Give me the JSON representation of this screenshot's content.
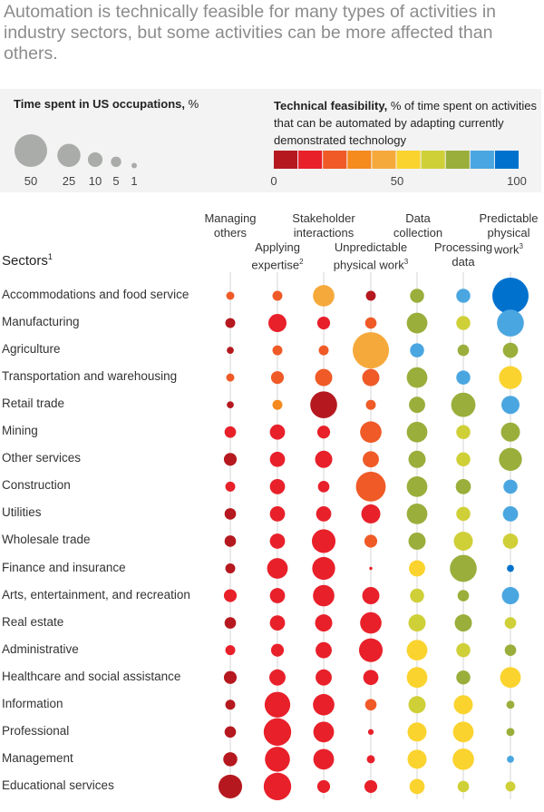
{
  "title": "Automation is technically feasible for many types of activities in industry sectors, but some activities can be more affected than others.",
  "legend": {
    "size_title_bold": "Time spent in US occupations,",
    "size_title_unit": "%",
    "size_values": [
      "50",
      "25",
      "10",
      "5",
      "1"
    ],
    "color_title_bold": "Technical feasibility,",
    "color_title_rest": "% of time spent on activities that can be automated by adapting currently demonstrated technology",
    "scale_labels": [
      "0",
      "50",
      "100"
    ],
    "colors": [
      "#b5191f",
      "#e8202a",
      "#ef5a27",
      "#f58a1f",
      "#f6a93b",
      "#fad32e",
      "#cfcf38",
      "#9aae3b",
      "#4aa6e0",
      "#0072ce"
    ]
  },
  "sectors_header": "Sectors",
  "sectors_header_sup": "1",
  "columns": [
    {
      "line1": "Managing",
      "line2": "others",
      "line3": ""
    },
    {
      "line1": "Applying",
      "line2": "expertise",
      "sup": "2"
    },
    {
      "line1": "Stakeholder",
      "line2": "interactions"
    },
    {
      "line1": "Unpredictable",
      "line2": "physical work",
      "sup": "3"
    },
    {
      "line1": "Data",
      "line2": "collection"
    },
    {
      "line1": "Processing",
      "line2": "data"
    },
    {
      "line1": "Predictable",
      "line2": "physical",
      "line3": "work",
      "sup": "3"
    }
  ],
  "chart_data": {
    "type": "bubble-matrix",
    "title": "Automation is technically feasible for many types of activities in industry sectors, but some activities can be more affected than others.",
    "size_measure": "Time spent in US occupations, %",
    "color_measure": "Technical feasibility, % of time spent on activities that can be automated by adapting currently demonstrated technology",
    "color_scale": [
      0,
      100
    ],
    "columns": [
      "Managing others",
      "Applying expertise",
      "Stakeholder interactions",
      "Unpredictable physical work",
      "Data collection",
      "Processing data",
      "Predictable physical work"
    ],
    "rows": [
      {
        "sector": "Accommodations and food service",
        "size": [
          2,
          3,
          14,
          3,
          6,
          6,
          40
        ],
        "feasibility": [
          25,
          25,
          45,
          2,
          78,
          86,
          98
        ]
      },
      {
        "sector": "Manufacturing",
        "size": [
          3,
          10,
          5,
          4,
          13,
          6,
          22
        ],
        "feasibility": [
          2,
          12,
          12,
          28,
          78,
          65,
          86
        ]
      },
      {
        "sector": "Agriculture",
        "size": [
          1.5,
          3,
          3,
          40,
          6,
          4,
          7
        ],
        "feasibility": [
          2,
          25,
          25,
          45,
          86,
          78,
          78
        ]
      },
      {
        "sector": "Transportation and warehousing",
        "size": [
          2,
          5,
          9,
          9,
          13,
          6,
          16
        ],
        "feasibility": [
          25,
          25,
          28,
          28,
          78,
          86,
          55
        ]
      },
      {
        "sector": "Retail trade",
        "size": [
          1.5,
          3,
          22,
          3,
          8,
          18,
          10
        ],
        "feasibility": [
          2,
          35,
          2,
          25,
          78,
          78,
          86
        ]
      },
      {
        "sector": "Mining",
        "size": [
          4,
          7,
          5,
          14,
          13,
          6,
          11
        ],
        "feasibility": [
          12,
          18,
          18,
          28,
          78,
          65,
          78
        ]
      },
      {
        "sector": "Other services",
        "size": [
          5,
          7,
          9,
          8,
          9,
          6,
          16
        ],
        "feasibility": [
          2,
          18,
          12,
          28,
          78,
          65,
          78
        ]
      },
      {
        "sector": "Construction",
        "size": [
          3,
          7,
          4,
          27,
          13,
          7,
          6
        ],
        "feasibility": [
          12,
          12,
          18,
          28,
          78,
          78,
          86
        ]
      },
      {
        "sector": "Utilities",
        "size": [
          4,
          7,
          7,
          11,
          13,
          6,
          7
        ],
        "feasibility": [
          2,
          12,
          12,
          18,
          78,
          65,
          86
        ]
      },
      {
        "sector": "Wholesale trade",
        "size": [
          4,
          7,
          17,
          5,
          9,
          11,
          7
        ],
        "feasibility": [
          2,
          18,
          12,
          28,
          78,
          65,
          65
        ]
      },
      {
        "sector": "Finance and insurance",
        "size": [
          3,
          13,
          16,
          0.3,
          8,
          22,
          1.5
        ],
        "feasibility": [
          2,
          12,
          12,
          12,
          55,
          78,
          98
        ]
      },
      {
        "sector": "Arts, entertainment, and recreation",
        "size": [
          5,
          7,
          14,
          9,
          6,
          4,
          9
        ],
        "feasibility": [
          12,
          18,
          18,
          12,
          65,
          78,
          86
        ]
      },
      {
        "sector": "Real estate",
        "size": [
          4,
          7,
          9,
          14,
          9,
          9,
          4
        ],
        "feasibility": [
          2,
          18,
          12,
          12,
          65,
          78,
          65
        ]
      },
      {
        "sector": "Administrative",
        "size": [
          3,
          5,
          8,
          17,
          13,
          6,
          4
        ],
        "feasibility": [
          12,
          18,
          18,
          12,
          55,
          65,
          78
        ]
      },
      {
        "sector": "Healthcare and social assistance",
        "size": [
          5,
          8,
          8,
          7,
          13,
          6,
          13
        ],
        "feasibility": [
          2,
          12,
          12,
          12,
          55,
          78,
          55
        ]
      },
      {
        "sector": "Information",
        "size": [
          3,
          20,
          14,
          4,
          9,
          11,
          2
        ],
        "feasibility": [
          2,
          12,
          12,
          28,
          65,
          55,
          78
        ]
      },
      {
        "sector": "Professional",
        "size": [
          4,
          23,
          13,
          1,
          11,
          13,
          2
        ],
        "feasibility": [
          2,
          12,
          12,
          18,
          55,
          55,
          78
        ]
      },
      {
        "sector": "Management",
        "size": [
          6,
          19,
          13,
          2,
          11,
          14,
          1.5
        ],
        "feasibility": [
          2,
          12,
          12,
          18,
          55,
          55,
          86
        ]
      },
      {
        "sector": "Educational services",
        "size": [
          17,
          23,
          5,
          5,
          7,
          4,
          3
        ],
        "feasibility": [
          2,
          12,
          12,
          18,
          55,
          65,
          65
        ]
      }
    ]
  }
}
